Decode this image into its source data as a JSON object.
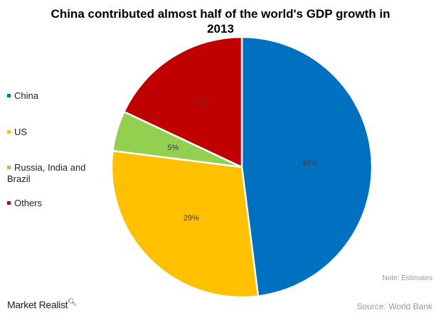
{
  "chart_data": {
    "type": "pie",
    "title": "China contributed almost half of the world's GDP growth in 2013",
    "title_lines": [
      "China contributed almost half of the world's GDP growth in",
      "2013"
    ],
    "categories": [
      "China",
      "US",
      "Russia, India and Brazil",
      "Others"
    ],
    "values": [
      48,
      29,
      5,
      18
    ],
    "data_labels": [
      "48%",
      "29%",
      "5%",
      "18%"
    ],
    "colors": [
      "#0070c0",
      "#ffc000",
      "#92d050",
      "#c00000"
    ],
    "start_angle": "top, clockwise",
    "legend_placement": "left",
    "legend_lines": [
      [
        "China"
      ],
      [
        "US"
      ],
      [
        "Russia, India and",
        "Brazil"
      ],
      [
        "Others"
      ]
    ],
    "note": "Note: Estimates",
    "source": "Source: World Bank"
  },
  "logo": "Market Realist"
}
